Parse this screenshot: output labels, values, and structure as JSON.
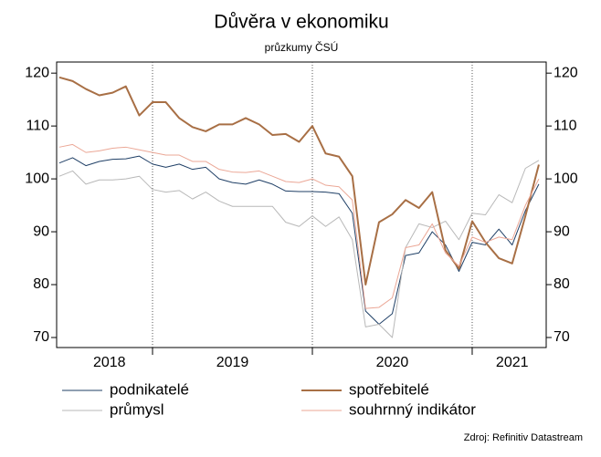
{
  "chart_data": {
    "type": "line",
    "title": "Důvěra v ekonomiku",
    "subtitle": "průzkumy ČSÚ",
    "x": [
      2018.417,
      2018.5,
      2018.583,
      2018.667,
      2018.75,
      2018.833,
      2018.917,
      2019,
      2019.083,
      2019.167,
      2019.25,
      2019.333,
      2019.417,
      2019.5,
      2019.583,
      2019.667,
      2019.75,
      2019.833,
      2019.917,
      2020,
      2020.083,
      2020.167,
      2020.25,
      2020.333,
      2020.417,
      2020.5,
      2020.583,
      2020.667,
      2020.75,
      2020.833,
      2020.917,
      2021,
      2021.083,
      2021.167,
      2021.25,
      2021.333,
      2021.417
    ],
    "series": [
      {
        "name": "podnikatelé",
        "color": "#1f3f66",
        "width": 1,
        "values": [
          103,
          104,
          102.5,
          103.3,
          103.7,
          103.8,
          104.3,
          102.8,
          102.2,
          102.8,
          101.8,
          102.2,
          100,
          99.3,
          99,
          99.8,
          99,
          97.7,
          97.6,
          97.6,
          97.5,
          97.2,
          93.5,
          75,
          72.5,
          74.5,
          85.5,
          86,
          90,
          87.5,
          82.5,
          88,
          87.5,
          90.5,
          87.5,
          94,
          99
        ]
      },
      {
        "name": "průmysl",
        "color": "#b8b8b8",
        "width": 1,
        "values": [
          100.5,
          101.5,
          99,
          99.8,
          99.8,
          100,
          100.5,
          98,
          97.5,
          97.8,
          96.2,
          97.5,
          95.8,
          94.8,
          94.8,
          94.8,
          94.8,
          91.8,
          91,
          93,
          91,
          92.8,
          88.5,
          72,
          72.5,
          70,
          87,
          91.5,
          90.8,
          92,
          88.5,
          93.5,
          93.2,
          97,
          95.5,
          102,
          103.5
        ]
      },
      {
        "name": "spotřebitelé",
        "color": "#a86f45",
        "width": 2,
        "values": [
          119.2,
          118.5,
          117,
          115.8,
          116.3,
          117.5,
          112,
          114.5,
          114.5,
          111.5,
          109.8,
          109,
          110.3,
          110.3,
          111.5,
          110.3,
          108.3,
          108.5,
          107,
          110,
          104.8,
          104.2,
          100.5,
          80,
          91.8,
          93.3,
          96,
          94.5,
          97.5,
          86.5,
          83,
          92,
          88,
          85,
          84,
          93,
          102.7
        ]
      },
      {
        "name": "souhrnný indikátor",
        "color": "#eba796",
        "width": 1,
        "values": [
          106,
          106.5,
          105,
          105.3,
          105.8,
          106,
          105.5,
          105,
          104.5,
          104.5,
          103.3,
          103.3,
          101.8,
          101.3,
          101.2,
          101.5,
          100.5,
          99.5,
          99.3,
          100,
          98.8,
          98.5,
          96,
          75.5,
          75.7,
          77.5,
          87,
          87.5,
          91.5,
          86,
          83.5,
          89,
          88,
          89,
          88.5,
          95,
          100
        ]
      }
    ],
    "xlim": [
      2018.4,
      2021.463
    ],
    "xticks": [
      {
        "value": 2018.73,
        "label": "2018"
      },
      {
        "value": 2019.5,
        "label": "2019"
      },
      {
        "value": 2020.5,
        "label": "2020"
      },
      {
        "value": 2021.25,
        "label": "2021"
      }
    ],
    "xgrid": [
      2019,
      2020,
      2021
    ],
    "ylim": [
      68.1,
      122.1
    ],
    "yticks": [
      70,
      80,
      90,
      100,
      110,
      120
    ],
    "source": "Zdroj: Refinitiv Datastream"
  }
}
